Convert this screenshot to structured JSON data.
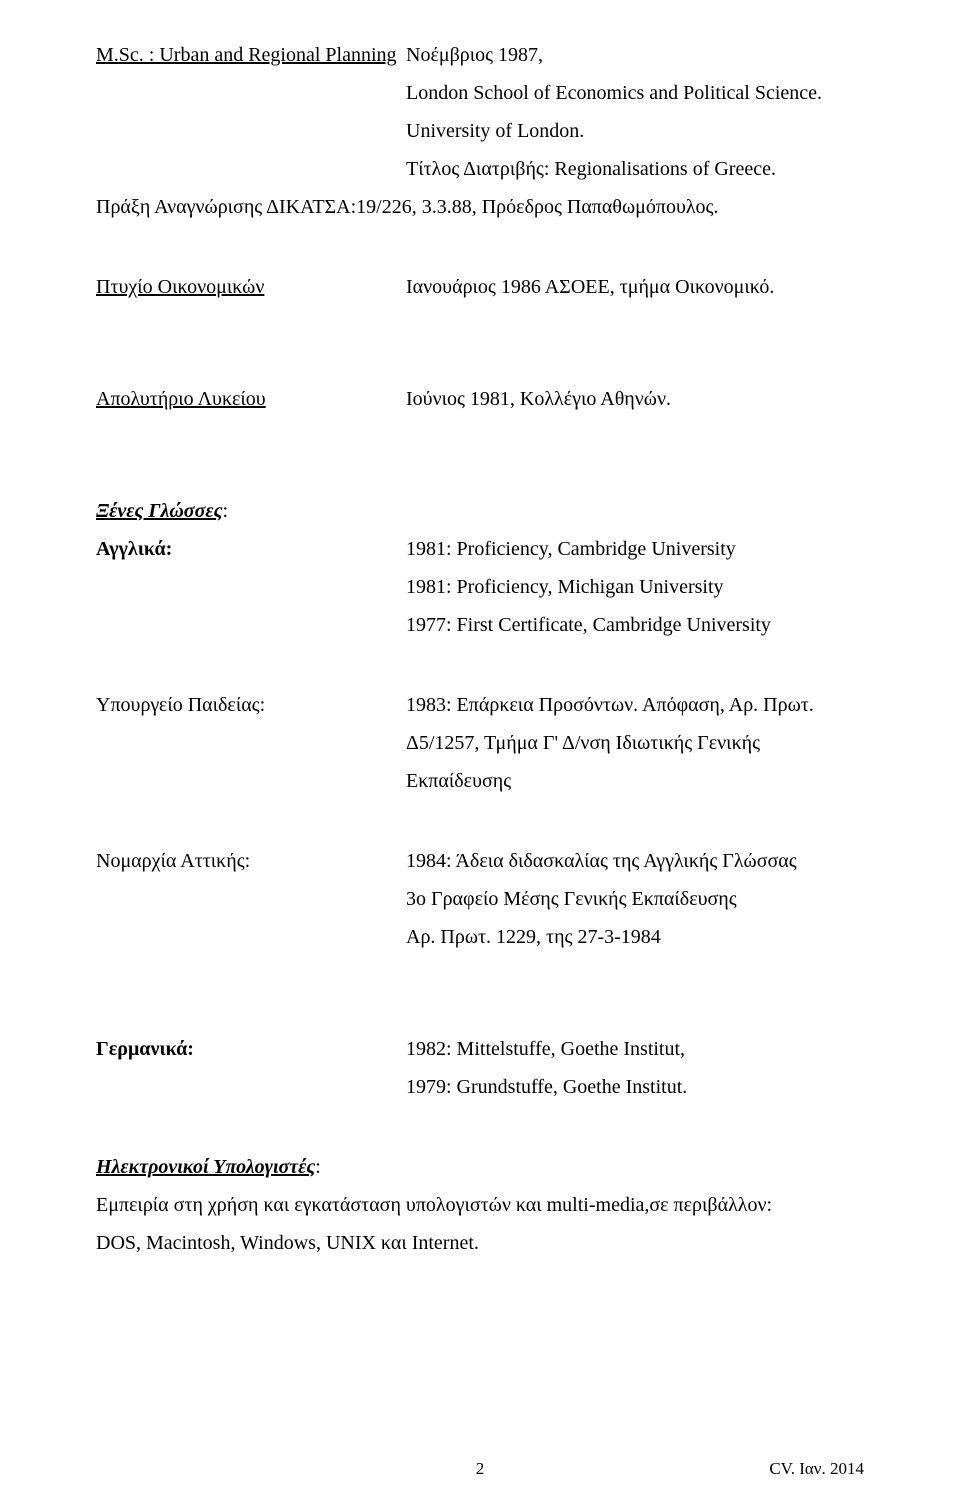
{
  "colors": {
    "text": "#000000",
    "bg": "#ffffff"
  },
  "fonts": {
    "body_pt": 15,
    "family": "Times New Roman"
  },
  "msc": {
    "label": "M.Sc. : Urban and Regional Planning",
    "date": "Νοέμβριος 1987,",
    "line2": "London School of Economics and Political Science.",
    "line3": "University of London.",
    "line4": "Τίτλος Διατριβής: Regionalisations of Greece.",
    "line5": "Πράξη Αναγνώρισης ΔΙΚΑΤΣΑ:19/226, 3.3.88, Πρόεδρος Παπαθωμόπουλος."
  },
  "econ": {
    "label": "Πτυχίο Οικονομικών",
    "value": "Ιανουάριος 1986   ΑΣΟΕΕ,  τμήμα Οικονομικό."
  },
  "lyceum": {
    "label": "Απολυτήριο Λυκείου",
    "value": "Ιούνιος 1981,  Κολλέγιο Αθηνών."
  },
  "languages_heading": "Ξένες Γλώσσες",
  "english": {
    "label": "Αγγλικά:",
    "l1": "1981:  Proficiency, Cambridge University",
    "l2": "1981:  Proficiency, Michigan University",
    "l3": "1977:  First Certificate, Cambridge University"
  },
  "ministry": {
    "label": "Υπουργείο Παιδείας:",
    "l1": "1983:  Επάρκεια Προσόντων.  Απόφαση, Αρ. Πρωτ.",
    "l2": "Δ5/1257, Τμήμα Γ' Δ/νση Ιδιωτικής Γενικής Εκπαίδευσης"
  },
  "prefecture": {
    "label": "Νομαρχία Αττικής:",
    "l1": "1984:  Άδεια διδασκαλίας της Αγγλικής Γλώσσας",
    "l2": "3ο Γραφείο Μέσης Γενικής Εκπαίδευσης",
    "l3": "Αρ. Πρωτ. 1229, της 27-3-1984"
  },
  "german": {
    "label": "Γερμανικά:",
    "l1": "1982:  Mittelstuffe, Goethe Institut,",
    "l2": "1979:  Grundstuffe, Goethe Institut."
  },
  "computers": {
    "heading": "Ηλεκτρονικοί Υπολογιστές",
    "l1": "Εμπειρία στη χρήση και εγκατάσταση υπολογιστών και multi-media,σε περιβάλλον:",
    "l2": "DOS, Macintosh, Windows, UNIX και Internet."
  },
  "footer": {
    "page_no": "2",
    "stamp": "CV. Ιαν. 2014"
  }
}
